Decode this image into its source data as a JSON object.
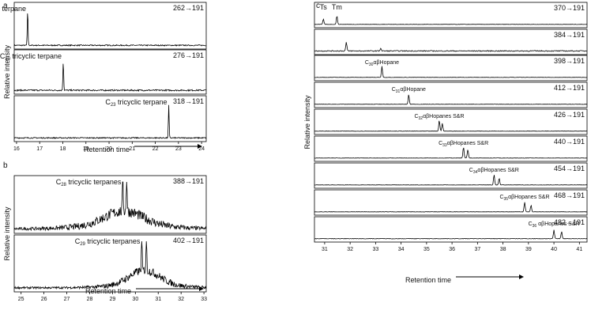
{
  "chart_data": [
    {
      "panel": "a",
      "type": "line",
      "xlabel": "Retention time",
      "ylabel": "Relative intensity",
      "xlim": [
        15.9,
        24.2
      ],
      "xticks": [
        16,
        17,
        18,
        19,
        20,
        21,
        22,
        23,
        24
      ],
      "traces": [
        {
          "name": "C19 tricyclic terpane",
          "compound": "C",
          "sub": "19",
          "rest": " tricyclic terpane",
          "ion": "262→191",
          "peaks": [
            {
              "x": 16.48,
              "h": 0.92
            }
          ],
          "noise": 0.03
        },
        {
          "name": "C20 tricyclic terpane",
          "compound": "C",
          "sub": "20",
          "rest": "  tricyclic terpane",
          "ion": "276→191",
          "peaks": [
            {
              "x": 18.02,
              "h": 0.82
            }
          ],
          "noise": 0.04
        },
        {
          "name": "C23 tricyclic terpane",
          "compound": "C",
          "sub": "23",
          "rest": "  tricyclic terpane",
          "ion": "318→191",
          "peaks": [
            {
              "x": 22.58,
              "h": 0.9
            }
          ],
          "noise": 0.03
        }
      ]
    },
    {
      "panel": "b",
      "type": "line",
      "xlabel": "Retention time",
      "ylabel": "Relative intensity",
      "xlim": [
        24.7,
        33.1
      ],
      "xticks": [
        25,
        26,
        27,
        28,
        29,
        30,
        31,
        32,
        33
      ],
      "traces": [
        {
          "name": "C28 tricyclic terpanes",
          "compound": "C",
          "sub": "28",
          "rest": " tricyclic terpanes",
          "ion": "388→191",
          "peaks": [
            {
              "x": 29.45,
              "h": 0.88
            },
            {
              "x": 29.62,
              "h": 0.88
            }
          ],
          "noise": 0.18,
          "hump": [
            29.5,
            2.3,
            0.28
          ]
        },
        {
          "name": "C29 tricyclic terpanes",
          "compound": "C",
          "sub": "29",
          "rest": " tricyclic terpanes",
          "ion": "402→191",
          "peaks": [
            {
              "x": 30.28,
              "h": 0.72
            },
            {
              "x": 30.48,
              "h": 0.74
            }
          ],
          "noise": 0.14,
          "hump": [
            30.4,
            1.8,
            0.3
          ]
        }
      ]
    },
    {
      "panel": "c",
      "type": "line",
      "xlabel": "Retention time",
      "ylabel": "Relative intensity",
      "xlim": [
        30.6,
        41.3
      ],
      "xticks": [
        31,
        32,
        33,
        34,
        35,
        36,
        37,
        38,
        39,
        40,
        41
      ],
      "traces": [
        {
          "name": "Ts Tm",
          "compound": "",
          "sub": "",
          "rest": "",
          "labels": [
            "Ts",
            "Tm"
          ],
          "ion": "370→191",
          "peaks": [
            {
              "x": 30.95,
              "h": 0.35
            },
            {
              "x": 31.48,
              "h": 0.55
            }
          ],
          "noise": 0.02
        },
        {
          "name": "384",
          "compound": "",
          "sub": "",
          "rest": "",
          "ion": "384→191",
          "peaks": [
            {
              "x": 31.85,
              "h": 0.55
            },
            {
              "x": 33.2,
              "h": 0.18
            }
          ],
          "noise": 0.06
        },
        {
          "name": "C30αβHopane",
          "compound": "C",
          "sub": "30",
          "rest": "αβHopane",
          "ion": "398→191",
          "peaks": [
            {
              "x": 33.25,
              "h": 0.7
            }
          ],
          "noise": 0.02
        },
        {
          "name": "C31αβHopane",
          "compound": "C",
          "sub": "31",
          "rest": "αβHopane",
          "ion": "412→191",
          "peaks": [
            {
              "x": 34.3,
              "h": 0.62
            }
          ],
          "noise": 0.02
        },
        {
          "name": "C32αβHopanes S&R",
          "compound": "C",
          "sub": "32",
          "rest": "αβHopanes S&R",
          "ion": "426→191",
          "peaks": [
            {
              "x": 35.5,
              "h": 0.7
            },
            {
              "x": 35.62,
              "h": 0.5
            }
          ],
          "noise": 0.02
        },
        {
          "name": "C33αβHopanes S&R",
          "compound": "C",
          "sub": "33",
          "rest": "αβHopanes S&R",
          "ion": "440→191",
          "peaks": [
            {
              "x": 36.45,
              "h": 0.7
            },
            {
              "x": 36.62,
              "h": 0.55
            }
          ],
          "noise": 0.02
        },
        {
          "name": "C34αβHopanes S&R",
          "compound": "C",
          "sub": "34",
          "rest": "αβHopanes S&R",
          "ion": "454→191",
          "peaks": [
            {
              "x": 37.65,
              "h": 0.65
            },
            {
              "x": 37.85,
              "h": 0.45
            }
          ],
          "noise": 0.02
        },
        {
          "name": "C35αβHopanes S&R",
          "compound": "C",
          "sub": "35",
          "rest": "αβHopanes S&R",
          "ion": "468→191",
          "peaks": [
            {
              "x": 38.85,
              "h": 0.62
            },
            {
              "x": 39.1,
              "h": 0.42
            }
          ],
          "noise": 0.02
        },
        {
          "name": "C36 αβHopanes S&R",
          "compound": "C",
          "sub": "36",
          "rest": " αβHopanes S&R",
          "ion": "482→191",
          "peaks": [
            {
              "x": 40.0,
              "h": 0.55
            },
            {
              "x": 40.3,
              "h": 0.45
            }
          ],
          "noise": 0.03
        }
      ]
    }
  ]
}
